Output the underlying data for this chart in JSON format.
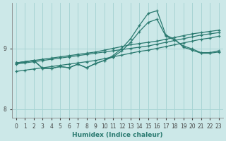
{
  "xlabel": "Humidex (Indice chaleur)",
  "bg_color": "#cce8e8",
  "grid_color": "#a8d4d4",
  "line_color": "#2a7a70",
  "xlim": [
    -0.5,
    23.5
  ],
  "ylim": [
    7.85,
    9.75
  ],
  "yticks": [
    8,
    9
  ],
  "xticks": [
    0,
    1,
    2,
    3,
    4,
    5,
    6,
    7,
    8,
    9,
    10,
    11,
    12,
    13,
    14,
    15,
    16,
    17,
    18,
    19,
    20,
    21,
    22,
    23
  ],
  "line_straight1_x": [
    0,
    1,
    2,
    3,
    4,
    5,
    6,
    7,
    8,
    9,
    10,
    11,
    12,
    13,
    14,
    15,
    16,
    17,
    18,
    19,
    20,
    21,
    22,
    23
  ],
  "line_straight1_y": [
    8.62,
    8.64,
    8.66,
    8.68,
    8.7,
    8.72,
    8.74,
    8.76,
    8.78,
    8.8,
    8.83,
    8.86,
    8.89,
    8.92,
    8.95,
    8.97,
    9.0,
    9.03,
    9.06,
    9.09,
    9.12,
    9.15,
    9.17,
    9.2
  ],
  "line_straight2_x": [
    0,
    1,
    2,
    3,
    4,
    5,
    6,
    7,
    8,
    9,
    10,
    11,
    12,
    13,
    14,
    15,
    16,
    17,
    18,
    19,
    20,
    21,
    22,
    23
  ],
  "line_straight2_y": [
    8.74,
    8.76,
    8.78,
    8.8,
    8.82,
    8.84,
    8.86,
    8.88,
    8.9,
    8.92,
    8.94,
    8.96,
    8.98,
    9.0,
    9.02,
    9.04,
    9.07,
    9.1,
    9.13,
    9.16,
    9.19,
    9.22,
    9.24,
    9.26
  ],
  "line_straight3_x": [
    0,
    1,
    2,
    3,
    4,
    5,
    6,
    7,
    8,
    9,
    10,
    11,
    12,
    13,
    14,
    15,
    16,
    17,
    18,
    19,
    20,
    21,
    22,
    23
  ],
  "line_straight3_y": [
    8.76,
    8.78,
    8.8,
    8.82,
    8.84,
    8.86,
    8.88,
    8.9,
    8.92,
    8.94,
    8.97,
    9.0,
    9.03,
    9.06,
    9.08,
    9.1,
    9.12,
    9.15,
    9.18,
    9.21,
    9.24,
    9.26,
    9.28,
    9.3
  ],
  "line_zigzag_x": [
    0,
    1,
    2,
    3,
    4,
    5,
    6,
    7,
    8,
    9,
    10,
    11,
    12,
    13,
    14,
    15,
    16,
    17,
    18,
    19,
    20,
    21,
    22,
    23
  ],
  "line_zigzag_y": [
    8.76,
    8.78,
    8.8,
    8.67,
    8.67,
    8.7,
    8.68,
    8.74,
    8.68,
    8.75,
    8.8,
    8.86,
    8.96,
    9.1,
    9.28,
    9.43,
    9.48,
    9.2,
    9.14,
    9.04,
    8.99,
    8.93,
    8.93,
    8.96
  ],
  "line_peak_x": [
    0,
    1,
    2,
    3,
    4,
    5,
    6,
    7,
    8,
    9,
    10,
    11,
    12,
    13,
    14,
    15,
    16,
    17,
    18,
    19,
    20,
    21,
    22,
    23
  ],
  "line_peak_y": [
    8.76,
    8.78,
    8.8,
    8.67,
    8.67,
    8.7,
    8.68,
    8.74,
    8.68,
    8.75,
    8.8,
    8.88,
    9.0,
    9.16,
    9.38,
    9.58,
    9.62,
    9.22,
    9.15,
    9.02,
    8.97,
    8.92,
    8.92,
    8.94
  ]
}
